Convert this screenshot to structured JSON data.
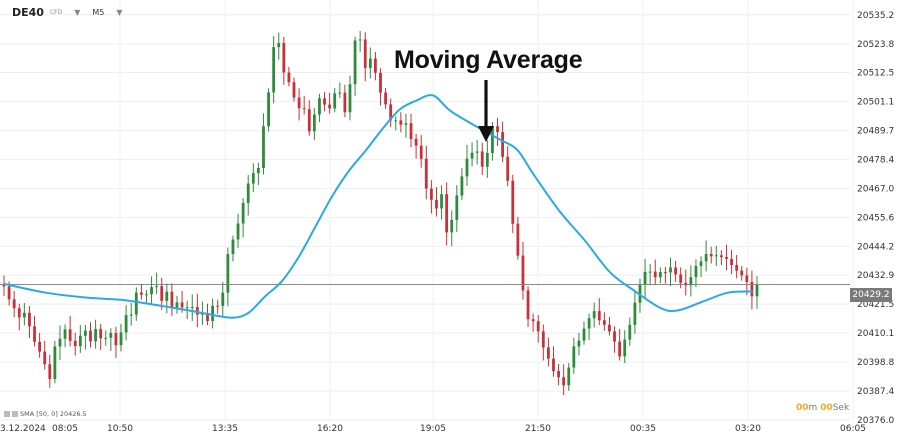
{
  "header": {
    "symbol": "DE40",
    "instrument_type": "CFD",
    "timeframe": "M5"
  },
  "annotation": {
    "text": "Moving Average"
  },
  "indicator": {
    "label": "SMA",
    "params": "[50, 0]",
    "value": "20426.5"
  },
  "timer": {
    "min": "00",
    "min_unit": "m",
    "sec": "00",
    "sec_unit": "Sek"
  },
  "last_price_label": "20429.2",
  "colors": {
    "up": "#2e8b3c",
    "down": "#c8303a",
    "sma": "#29abe2",
    "last_price": "#7a7a7a"
  },
  "chart_data": {
    "type": "candlestick",
    "y_ticks": [
      20376.0,
      20387.4,
      20398.8,
      20410.1,
      20421.5,
      20432.9,
      20444.2,
      20455.6,
      20467.0,
      20478.4,
      20489.7,
      20501.1,
      20512.5,
      20523.8,
      20535.2
    ],
    "ylim": [
      20376.0,
      20541.0
    ],
    "x_ticks": [
      "13.12.2024",
      "08:05",
      "10:50",
      "13:35",
      "16:20",
      "19:05",
      "21:50",
      "00:35",
      "03:20",
      "06:05"
    ],
    "last_price": 20429.2,
    "closes": [
      20428.5,
      20423.4,
      20419.9,
      20416.3,
      20418.1,
      20412.8,
      20406.7,
      20402.9,
      20397.9,
      20392.1,
      20404.9,
      20407.9,
      20411.6,
      20407.1,
      20405.0,
      20409.1,
      20411.1,
      20406.9,
      20411.7,
      20408.1,
      20408.3,
      20410.2,
      20405.4,
      20410.4,
      20417.2,
      20417.4,
      20426.1,
      20425.2,
      20425.4,
      20428.2,
      20428.6,
      20422.8,
      20426.4,
      20420.2,
      20422.2,
      20420.2,
      20420.3,
      20420.4,
      20417.4,
      20418.0,
      20414.9,
      20420.9,
      20420.8,
      20426.0,
      20441.2,
      20446.9,
      20453.2,
      20461.3,
      20468.9,
      20473.0,
      20475.0,
      20491.4,
      20504.7,
      20522.5,
      20524.1,
      20512.5,
      20508.7,
      20502.7,
      20498.5,
      20498.1,
      20489.4,
      20496.0,
      20502.4,
      20499.9,
      20498.4,
      20504.3,
      20504.6,
      20496.9,
      20507.9,
      20525.1,
      20525.5,
      20514.3,
      20518.0,
      20512.4,
      20504.6,
      20500.0,
      20493.7,
      20493.7,
      20492.0,
      20492.6,
      20486.4,
      20483.8,
      20478.6,
      20466.9,
      20462.5,
      20459.1,
      20464.7,
      20449.7,
      20454.6,
      20464.2,
      20471.7,
      20478.7,
      20481.0,
      20481.5,
      20475.5,
      20480.9,
      20491.4,
      20489.1,
      20479.4,
      20470.0,
      20453.1,
      20440.6,
      20426.9,
      20415.6,
      20414.8,
      20410.8,
      20404.5,
      20400.1,
      20395.2,
      20392.8,
      20389.6,
      20396.6,
      20404.9,
      20407.2,
      20411.9,
      20416.0,
      20418.8,
      20415.2,
      20413.4,
      20410.8,
      20406.8,
      20401.0,
      20407.6,
      20413.4,
      20422.1,
      20429.1,
      20434.2,
      20434.3,
      20432.1,
      20434.1,
      20434.0,
      20435.9,
      20433.2,
      20429.9,
      20428.9,
      20432.1,
      20436.5,
      20438.3,
      20441.2,
      20440.3,
      20440.7,
      20440.0,
      20439.3,
      20436.9,
      20434.7,
      20432.8,
      20430.2,
      20424.6,
      20429.2
    ],
    "sma_y": [
      20429.5,
      20426.0,
      20424.0,
      20423.2,
      20421.2,
      20419.0,
      20417.8,
      20416.2,
      20418.0,
      20424.5,
      20430.5,
      20440.0,
      20452.0,
      20464.0,
      20474.0,
      20482.0,
      20490.5,
      20498.0,
      20501.5,
      20503.5,
      20497.5,
      20491.5,
      20486.0,
      20482.0,
      20472.0,
      20458.0,
      20446.5,
      20434.0,
      20426.5,
      20420.0,
      20419.0,
      20422.5,
      20426.0,
      20426.5
    ],
    "sma_x": [
      0.0,
      0.05,
      0.1,
      0.14,
      0.18,
      0.22,
      0.24,
      0.27,
      0.29,
      0.31,
      0.33,
      0.35,
      0.37,
      0.39,
      0.41,
      0.43,
      0.45,
      0.47,
      0.49,
      0.51,
      0.53,
      0.56,
      0.59,
      0.61,
      0.63,
      0.66,
      0.69,
      0.72,
      0.75,
      0.78,
      0.8,
      0.83,
      0.86,
      0.89
    ]
  }
}
